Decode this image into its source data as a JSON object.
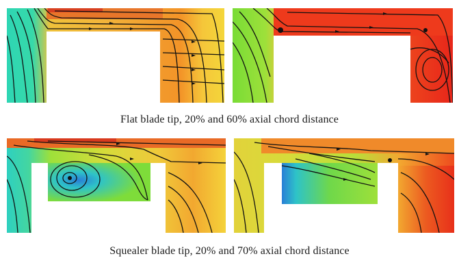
{
  "figure": {
    "caption_flat": "Flat blade tip, 20% and 60% axial chord distance",
    "caption_squealer": "Squealer blade tip, 20% and 70% axial chord distance"
  },
  "colors": {
    "blue": "#2f6bd8",
    "cyan": "#2fd0c0",
    "green": "#7edc3a",
    "yellow": "#f2e23a",
    "orange": "#f39a2c",
    "red": "#e3211b",
    "streamline": "#111111"
  }
}
